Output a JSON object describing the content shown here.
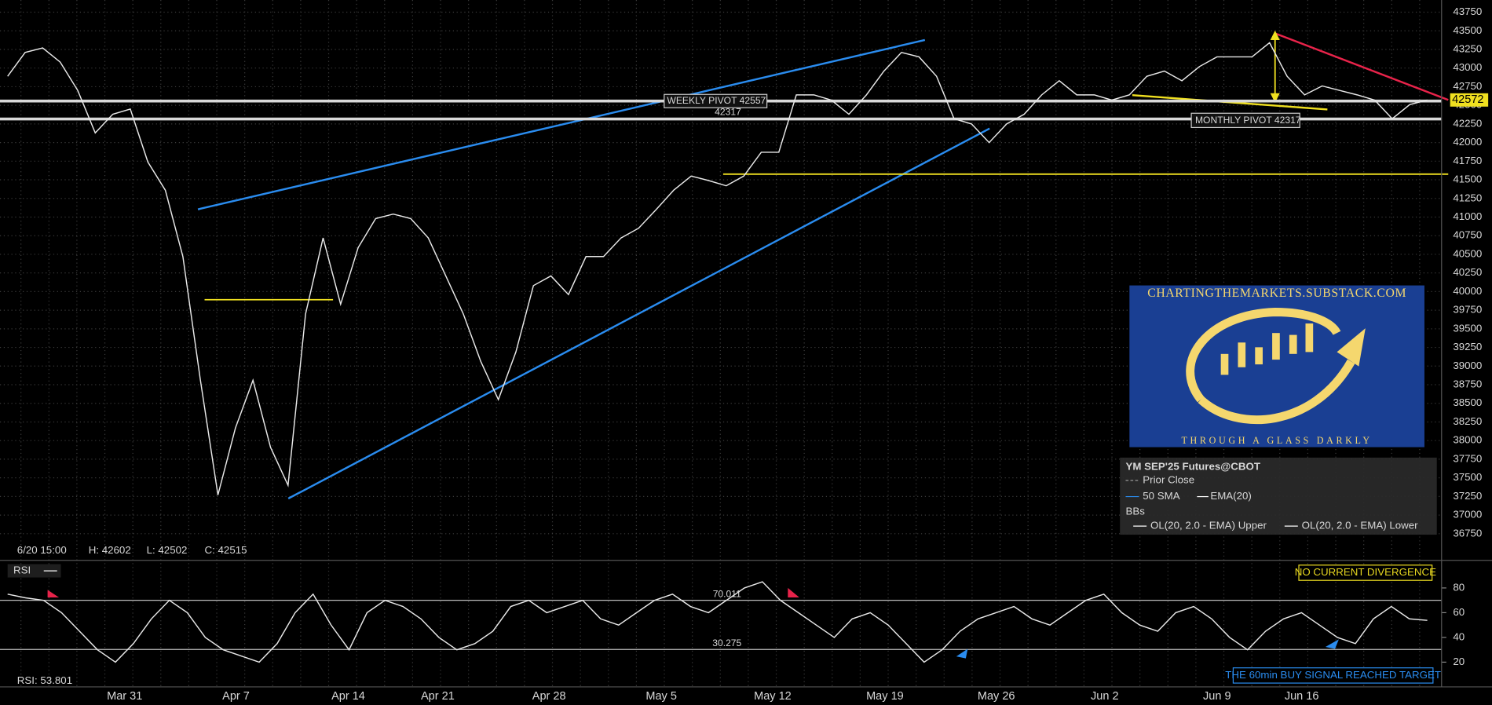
{
  "chart_data": [
    {
      "type": "line",
      "color": "#e8e8e8",
      "values": [
        42890,
        43210,
        43270,
        43080,
        42700,
        42130,
        42380,
        42450,
        41740,
        41360,
        40470,
        38810,
        37270,
        38170,
        38810,
        37910,
        37400,
        39700,
        40720,
        39830,
        40590,
        40980,
        41040,
        40980,
        40720,
        40210,
        39700,
        39060,
        38550,
        39190,
        40080,
        40210,
        39960,
        40470,
        40470,
        40720,
        40850,
        41100,
        41360,
        41550,
        41490,
        41420,
        41550,
        41870,
        41870,
        42640,
        42640,
        42570,
        42380,
        42640,
        42960,
        43210,
        43150,
        42890,
        42320,
        42250,
        42000,
        42250,
        42380,
        42640,
        42830,
        42640,
        42640,
        42570,
        42640,
        42890,
        42960,
        42830,
        43020,
        43150,
        43150,
        43150,
        43340,
        42890,
        42640,
        42760,
        42700,
        42640,
        42570,
        42320,
        42510,
        42570
      ],
      "ylim": [
        36405,
        43913
      ],
      "yticks": [
        36750,
        37000,
        37250,
        37500,
        37750,
        38000,
        38250,
        38500,
        38750,
        39000,
        39250,
        39500,
        39750,
        40000,
        40250,
        40500,
        40750,
        41000,
        41250,
        41500,
        41750,
        42000,
        42250,
        42500,
        42750,
        43000,
        43250,
        43500,
        43750
      ],
      "grid": true,
      "last_price": 42572,
      "info": [
        "6/20 15:00",
        "H: 42602",
        "L: 42502",
        "C: 42515"
      ],
      "pivots": [
        {
          "label": "WEEKLY PIVOT 42557",
          "value": 42557
        },
        {
          "label": "MONTHLY PIVOT 42317",
          "value": 42317
        }
      ],
      "pivot_price_text": "42317",
      "legend": {
        "title": "YM SEP'25 Futures@CBOT",
        "items": [
          "Prior Close",
          "50 SMA",
          "EMA(20)",
          "BBs",
          "OL(20, 2.0 - EMA) Upper",
          "OL(20, 2.0 - EMA) Lower"
        ]
      }
    },
    {
      "type": "line",
      "title": "RSI",
      "color": "#e8e8e8",
      "values": [
        75,
        72,
        70,
        60,
        45,
        30,
        20,
        35,
        55,
        70,
        60,
        40,
        30,
        25,
        20,
        35,
        60,
        75,
        50,
        30,
        60,
        70,
        65,
        55,
        40,
        30,
        35,
        45,
        65,
        70,
        60,
        65,
        70,
        55,
        50,
        60,
        70,
        75,
        65,
        60,
        70,
        80,
        85,
        70,
        60,
        50,
        40,
        55,
        60,
        50,
        35,
        20,
        30,
        45,
        55,
        60,
        65,
        55,
        50,
        60,
        70,
        75,
        60,
        50,
        45,
        60,
        65,
        55,
        40,
        30,
        45,
        55,
        60,
        50,
        40,
        35,
        55,
        65,
        55,
        53.8
      ],
      "ylim": [
        0,
        100
      ],
      "yticks": [
        20,
        40,
        60,
        80
      ],
      "levels": [
        70.011,
        30.275
      ],
      "readout": "RSI: 53.801",
      "annotations": [
        "NO CURRENT DIVERGENCE",
        "THE 60min BUY SIGNAL REACHED TARGET"
      ],
      "x_axis_labels": [
        "Mar 31",
        "Apr 7",
        "Apr 14",
        "Apr 21",
        "Apr 28",
        "May 5",
        "May 12",
        "May 19",
        "May 26",
        "Jun 2",
        "Jun 9",
        "Jun 16"
      ]
    }
  ],
  "watermark": {
    "site": "CHARTINGTHEMARKETS.SUBSTACK.COM",
    "tagline": "THROUGH A GLASS DARKLY"
  }
}
